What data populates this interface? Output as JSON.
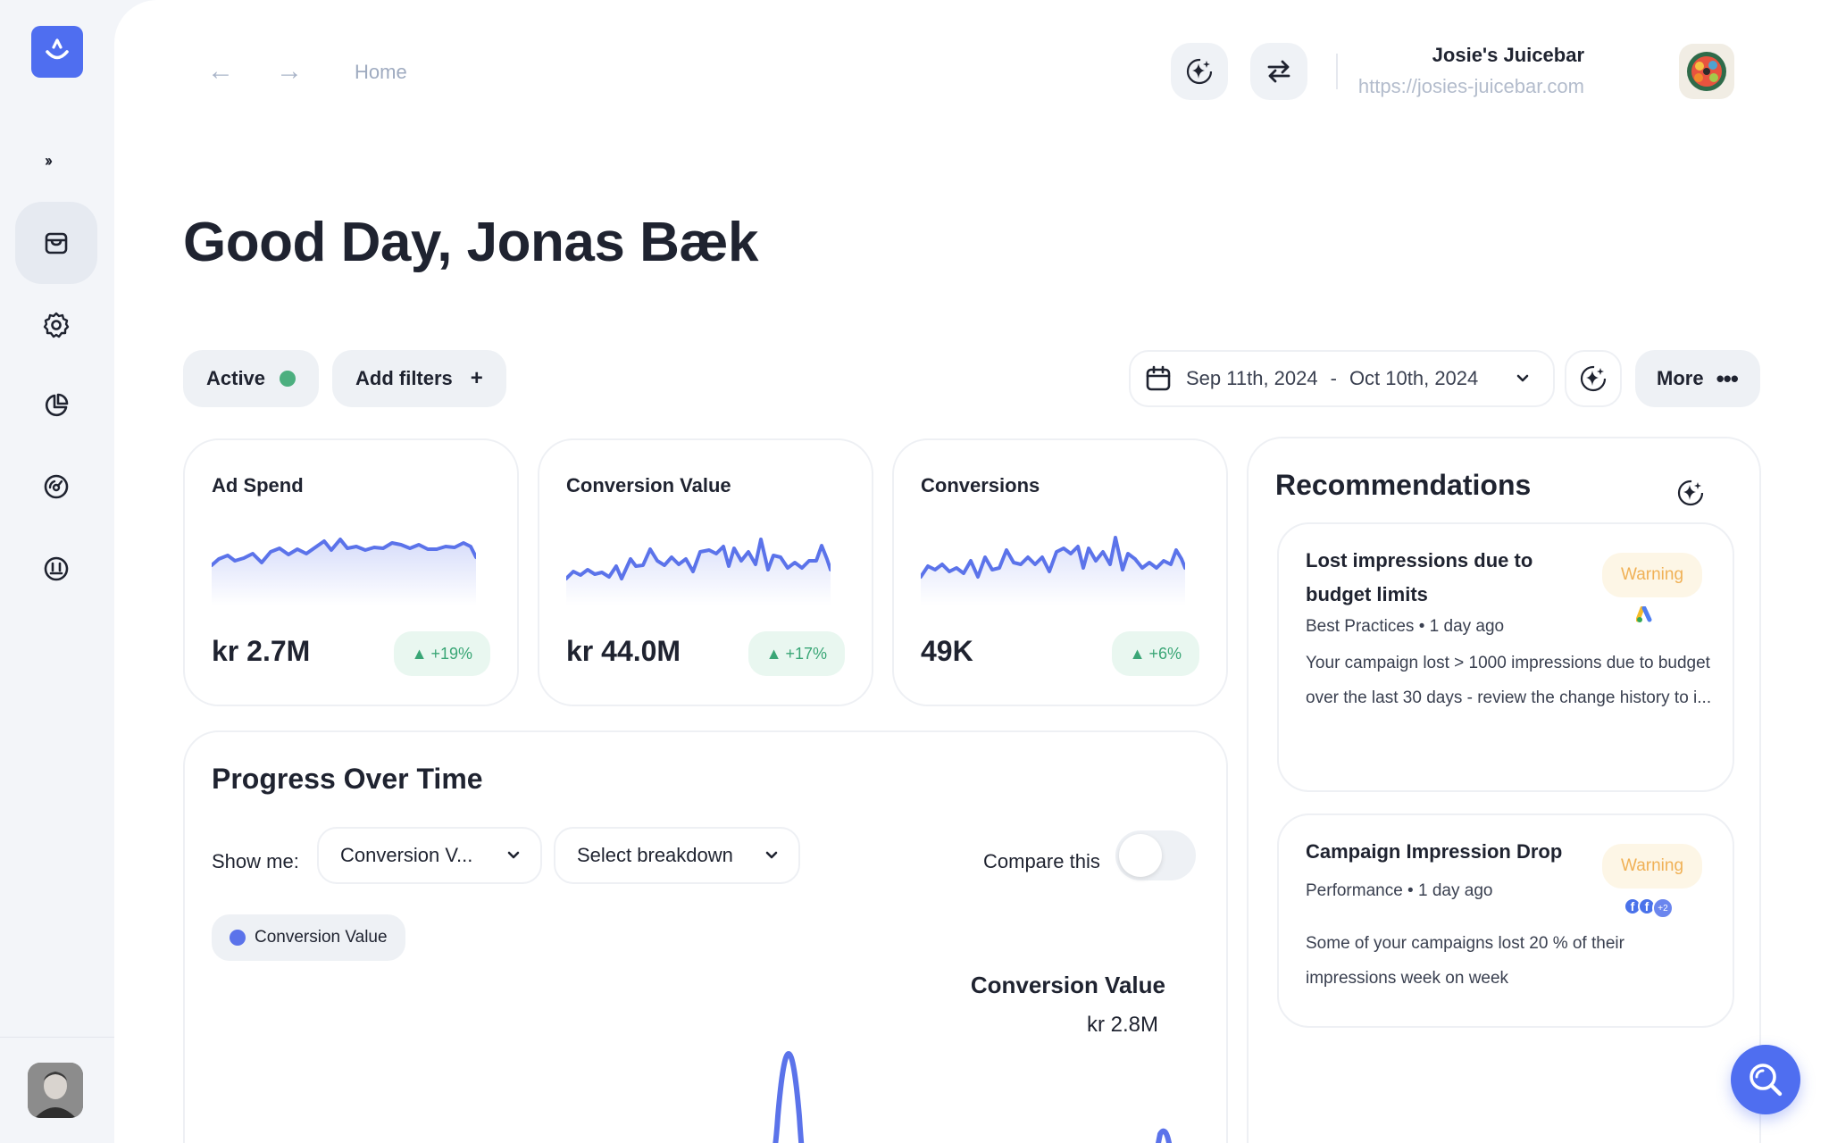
{
  "nav": {
    "items": [
      {
        "name": "store-icon",
        "active": true
      },
      {
        "name": "gear-icon",
        "active": false
      },
      {
        "name": "pie-chart-icon",
        "active": false
      },
      {
        "name": "gauge-icon",
        "active": false
      },
      {
        "name": "face-icon",
        "active": false
      }
    ],
    "expand_label": "››"
  },
  "topbar": {
    "breadcrumb": "Home",
    "account_name": "Josie's Juicebar",
    "account_url": "https://josies-juicebar.com"
  },
  "greeting": "Good Day, Jonas Bæk",
  "filters": {
    "active_label": "Active",
    "add_filters_label": "Add filters",
    "date_start": "Sep 11th, 2024",
    "date_sep": "-",
    "date_end": "Oct 10th, 2024",
    "more_label": "More"
  },
  "kpis": [
    {
      "title": "Ad Spend",
      "value": "kr 2.7M",
      "delta": "+19%"
    },
    {
      "title": "Conversion Value",
      "value": "kr 44.0M",
      "delta": "+17%"
    },
    {
      "title": "Conversions",
      "value": "49K",
      "delta": "+6%"
    }
  ],
  "progress": {
    "title": "Progress Over Time",
    "show_me_label": "Show me:",
    "metric_select": "Conversion V...",
    "breakdown_select": "Select breakdown",
    "compare_label": "Compare this",
    "legend_label": "Conversion Value",
    "tooltip_title": "Conversion Value",
    "tooltip_value": "kr 2.8M"
  },
  "recommendations": {
    "title": "Recommendations",
    "items": [
      {
        "title": "Lost impressions due to budget limits",
        "category": "Best Practices",
        "time": "1 day ago",
        "badge": "Warning",
        "body": "Your campaign lost > 1000 impressions due to budget over the last 30 days - review the change history to i..."
      },
      {
        "title": "Campaign Impression Drop",
        "category": "Performance",
        "time": "1 day ago",
        "badge": "Warning",
        "extra_count": "+2",
        "body": "Some of your campaigns lost 20 % of their impressions week on week"
      }
    ]
  },
  "colors": {
    "accent": "#4f6ef0",
    "line": "#5b73ea",
    "positive": "#3aa676",
    "warning": "#f0b156",
    "active_dot": "#4caf7f"
  }
}
